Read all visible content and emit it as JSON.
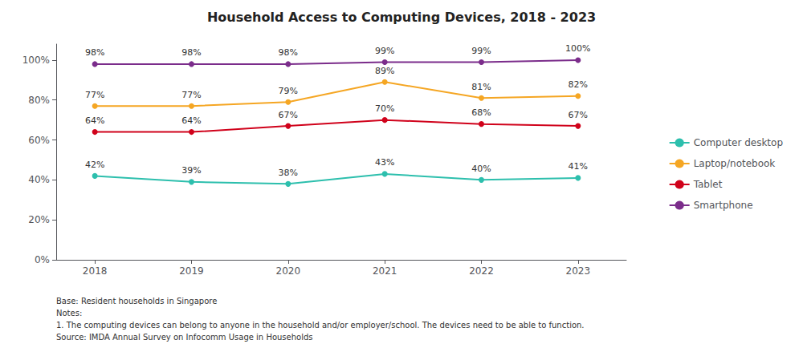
{
  "chart_data": {
    "type": "line",
    "title": "Household Access to Computing Devices, 2018 - 2023",
    "x": [
      2018,
      2019,
      2020,
      2021,
      2022,
      2023
    ],
    "xlim": [
      2017.6,
      2023.5
    ],
    "xticks": [
      2018,
      2019,
      2020,
      2021,
      2022,
      2023
    ],
    "ylim": [
      0,
      108
    ],
    "yticks": [
      {
        "value": 0,
        "label": "0%"
      },
      {
        "value": 20,
        "label": "20%"
      },
      {
        "value": 40,
        "label": "40%"
      },
      {
        "value": 60,
        "label": "60%"
      },
      {
        "value": 80,
        "label": "80%"
      },
      {
        "value": 100,
        "label": "100%"
      }
    ],
    "series": [
      {
        "name": "Computer desktop",
        "color": "#2dbfad",
        "marker": "circle",
        "values": [
          42,
          39,
          38,
          43,
          40,
          41
        ],
        "value_labels": [
          "42%",
          "39%",
          "38%",
          "43%",
          "40%",
          "41%"
        ]
      },
      {
        "name": "Laptop/notebook",
        "color": "#f5a623",
        "marker": "circle",
        "values": [
          77,
          77,
          79,
          89,
          81,
          82
        ],
        "value_labels": [
          "77%",
          "77%",
          "79%",
          "89%",
          "81%",
          "82%"
        ]
      },
      {
        "name": "Tablet",
        "color": "#d0021b",
        "marker": "circle",
        "values": [
          64,
          64,
          67,
          70,
          68,
          67
        ],
        "value_labels": [
          "64%",
          "64%",
          "67%",
          "70%",
          "68%",
          "67%"
        ]
      },
      {
        "name": "Smartphone",
        "color": "#7b2d8b",
        "marker": "circle",
        "values": [
          98,
          98,
          98,
          99,
          99,
          100
        ],
        "value_labels": [
          "98%",
          "98%",
          "98%",
          "99%",
          "99%",
          "100%"
        ]
      }
    ],
    "data_labels": true,
    "grid": false,
    "legend": "right",
    "annotations": [
      "Base: Resident households in Singapore",
      "Notes:",
      "1. The computing devices can belong to anyone in the household and/or employer/school. The devices need to be able to function.",
      "Source: IMDA Annual Survey on Infocomm Usage in Households"
    ]
  }
}
